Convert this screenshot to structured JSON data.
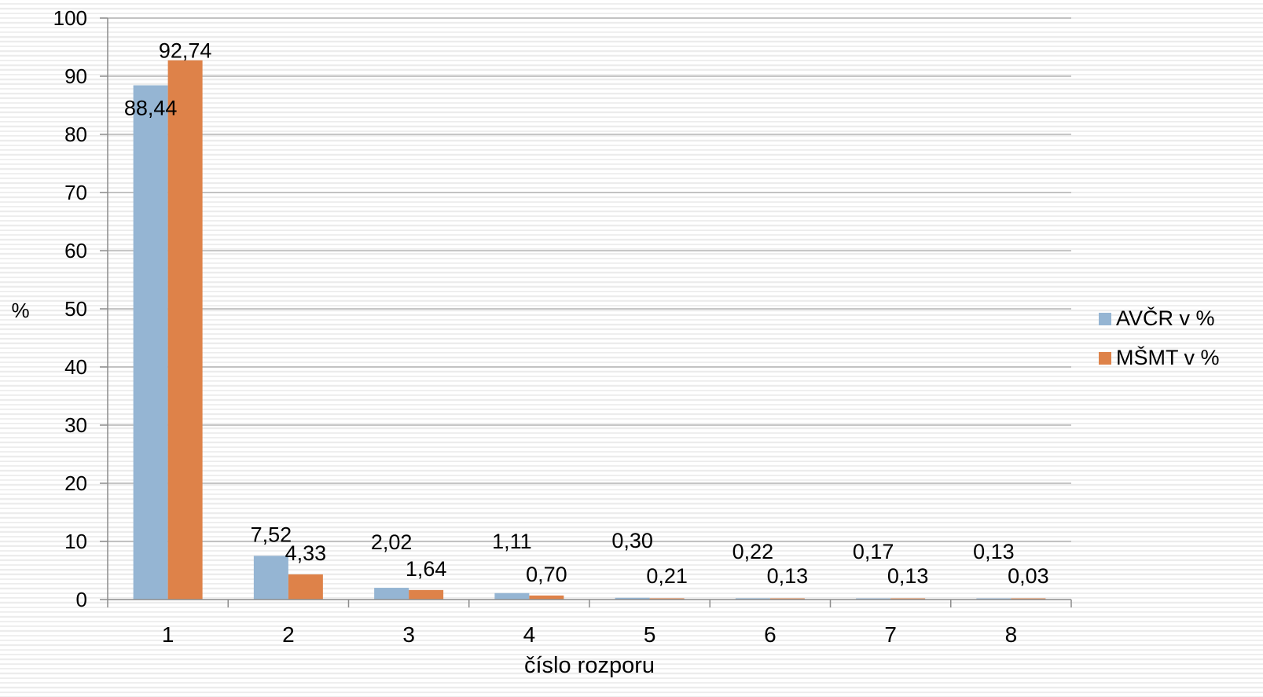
{
  "chart_data": {
    "type": "bar",
    "title": "",
    "xlabel": "číslo rozporu",
    "ylabel": "%",
    "categories": [
      "1",
      "2",
      "3",
      "4",
      "5",
      "6",
      "7",
      "8"
    ],
    "ylim": [
      0,
      100
    ],
    "yticks": [
      "0",
      "10",
      "20",
      "30",
      "40",
      "50",
      "60",
      "70",
      "80",
      "90",
      "100"
    ],
    "grid": true,
    "legend_position": "right",
    "series": [
      {
        "name": "AVČR v %",
        "color": "#95b5d3",
        "values": [
          88.44,
          7.52,
          2.02,
          1.11,
          0.3,
          0.22,
          0.17,
          0.13
        ],
        "labels": [
          "88,44",
          "7,52",
          "2,02",
          "1,11",
          "0,30",
          "0,22",
          "0,17",
          "0,13"
        ]
      },
      {
        "name": "MŠMT v %",
        "color": "#de8249",
        "values": [
          92.74,
          4.33,
          1.64,
          0.7,
          0.21,
          0.13,
          0.13,
          0.03
        ],
        "labels": [
          "92,74",
          "4,33",
          "1,64",
          "0,70",
          "0,21",
          "0,13",
          "0,13",
          "0,03"
        ]
      }
    ]
  }
}
